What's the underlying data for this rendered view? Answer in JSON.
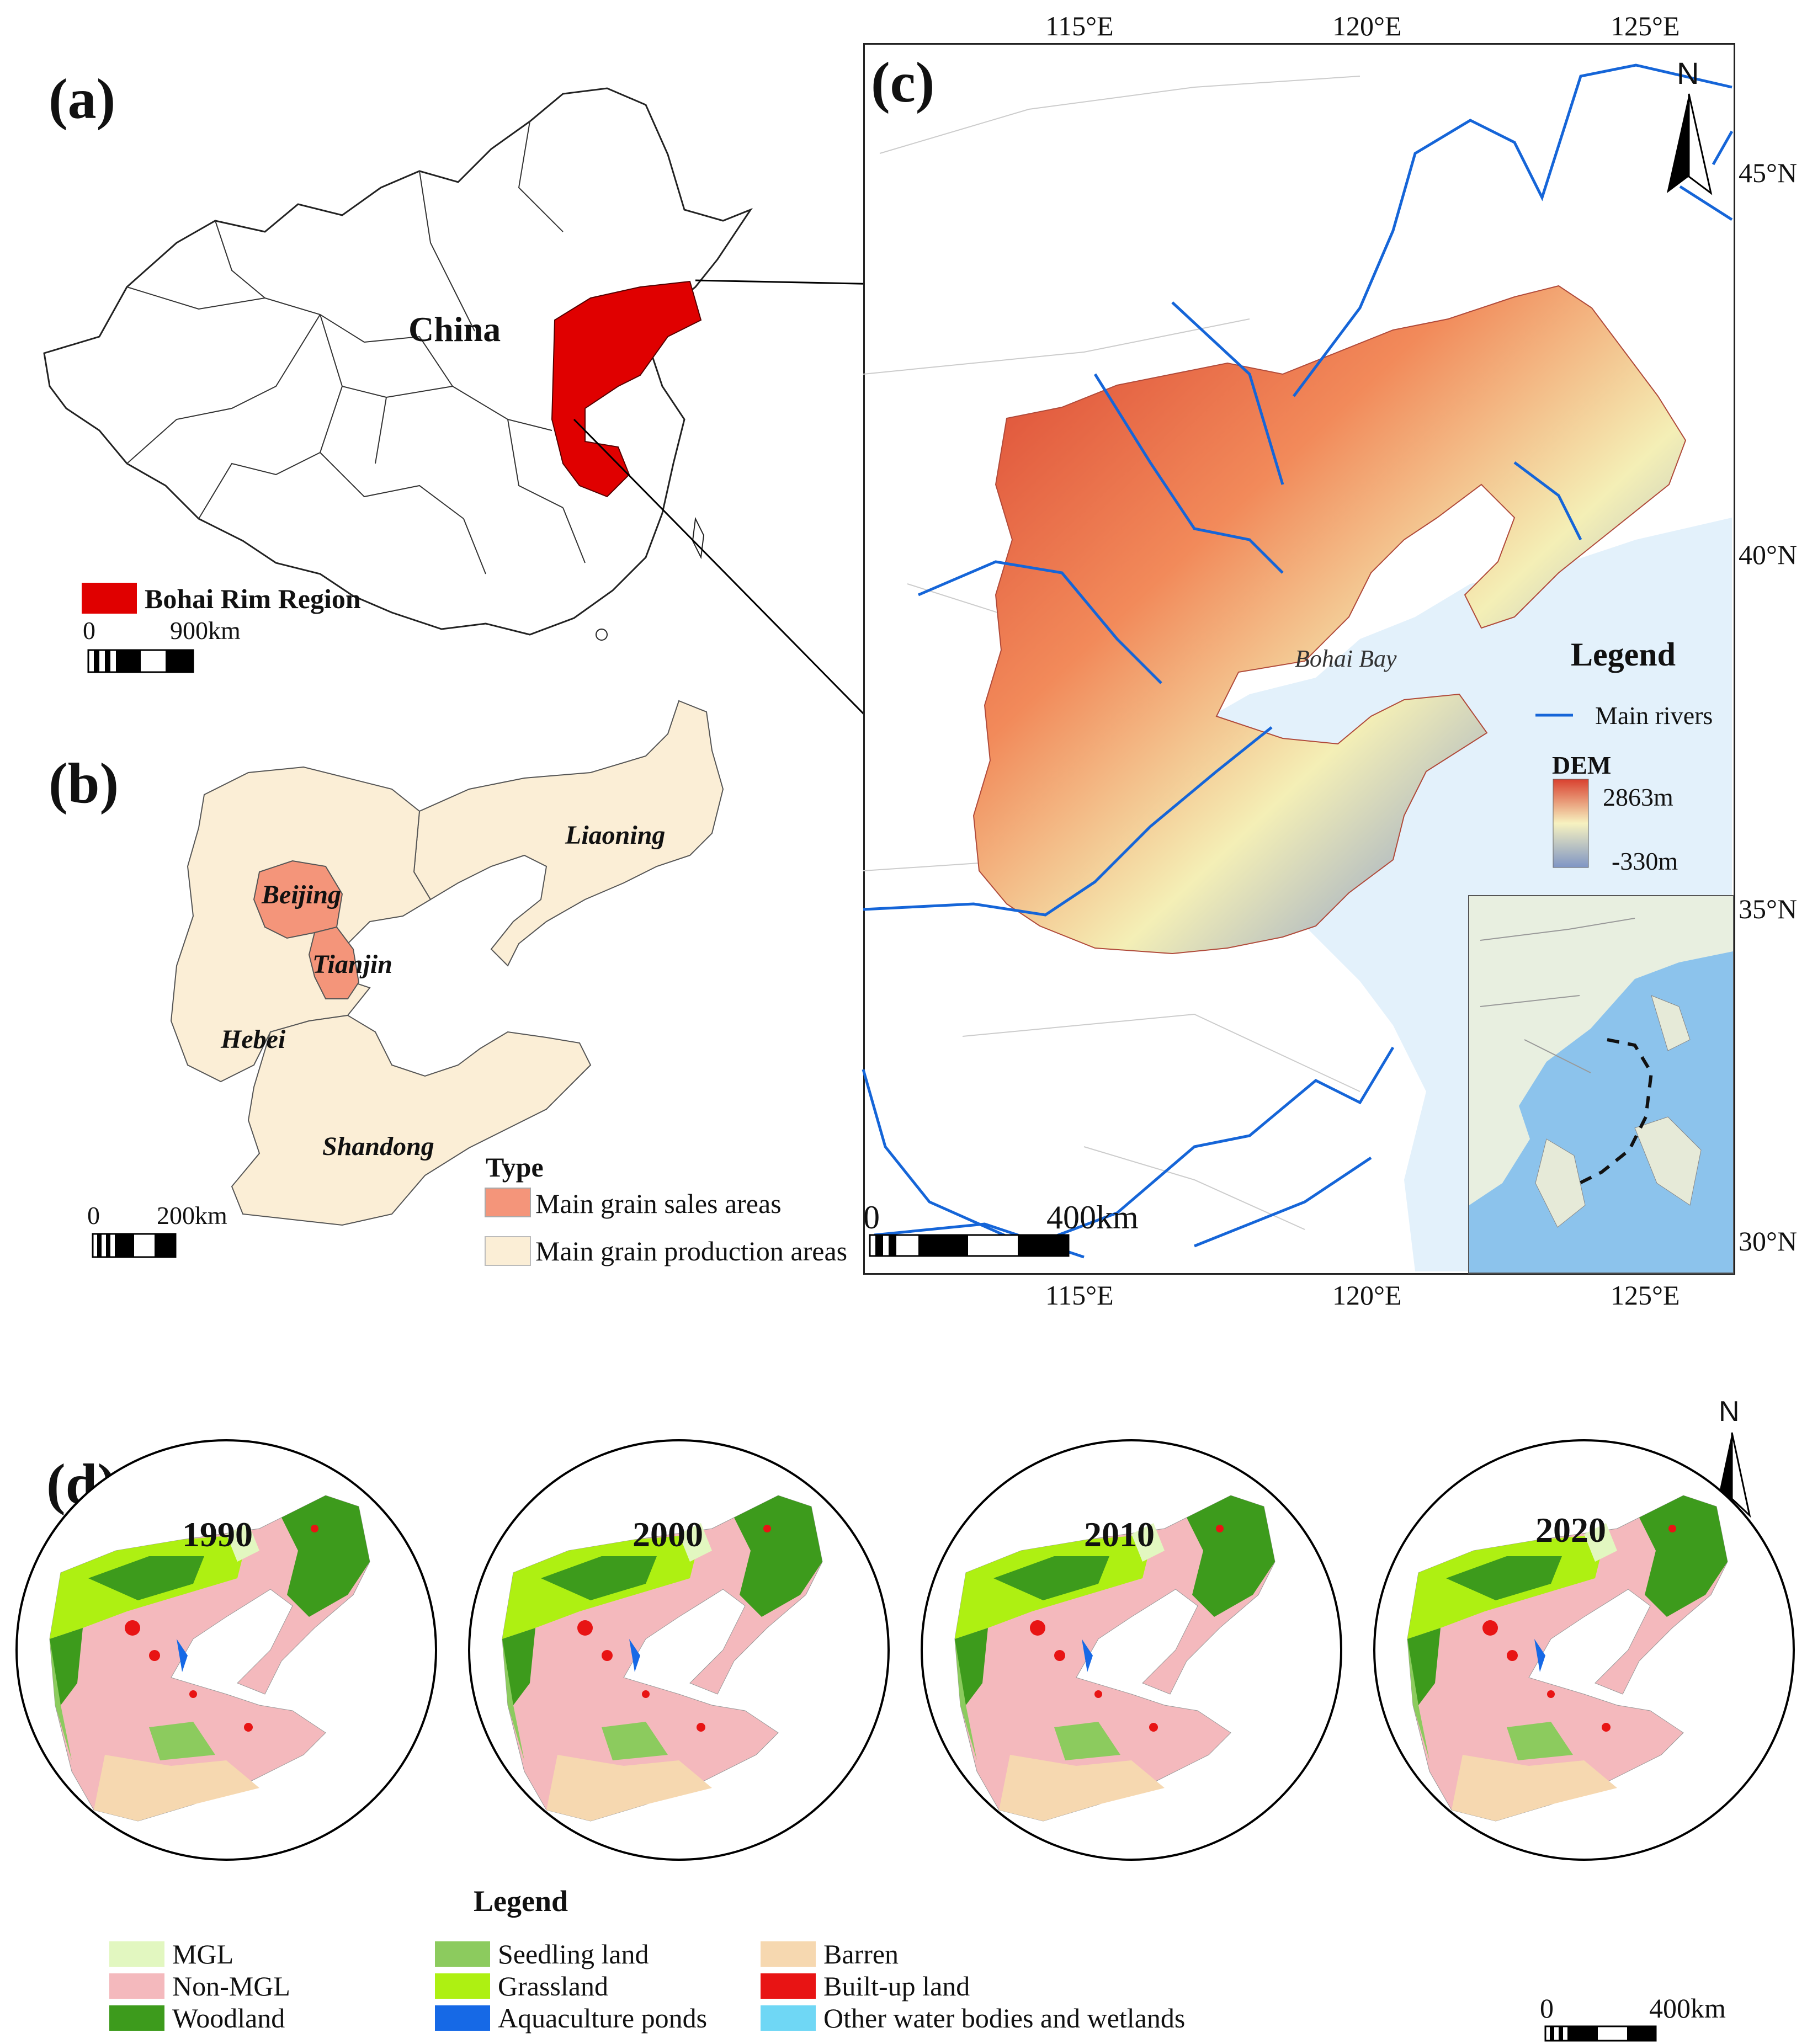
{
  "panels": {
    "a": {
      "letter": "(a)",
      "country_label": "China",
      "legend_label": "Bohai Rim Region",
      "scale_zero": "0",
      "scale_max": "900km"
    },
    "b": {
      "letter": "(b)",
      "provinces": [
        "Liaoning",
        "Beijing",
        "Tianjin",
        "Hebei",
        "Shandong"
      ],
      "scale_zero": "0",
      "scale_max": "200km",
      "type_title": "Type",
      "types": [
        "Main grain sales areas",
        "Main grain production areas"
      ]
    },
    "c": {
      "letter": "(c)",
      "top_lon": [
        "115°E",
        "120°E",
        "125°E"
      ],
      "bottom_lon": [
        "115°E",
        "120°E",
        "125°E"
      ],
      "lat": [
        "45°N",
        "40°N",
        "35°N",
        "30°N"
      ],
      "north": "N",
      "bay_label": "Bohai Bay",
      "legend_title": "Legend",
      "rivers_label": "Main rivers",
      "dem_title": "DEM",
      "dem_max": "2863m",
      "dem_min": "-330m",
      "scale_zero": "0",
      "scale_max": "400km"
    },
    "d": {
      "letter": "(d)",
      "years": [
        "1990",
        "2000",
        "2010",
        "2020"
      ],
      "north": "N",
      "legend_title": "Legend",
      "scale_zero": "0",
      "scale_max": "400km",
      "legend_items": [
        "MGL",
        "Non-MGL",
        "Woodland",
        "Seedling land",
        "Grassland",
        "Aquaculture ponds",
        "Barren",
        "Built-up land",
        "Other water bodies and wetlands"
      ]
    }
  },
  "colors": {
    "bohai_rim_red": "#e00000",
    "sales_area": "#f4957a",
    "production_area": "#fbeed6",
    "river_blue": "#1565d8",
    "sea": "#e3f1fb",
    "mgl": "#e2f7c0",
    "non_mgl": "#f4b9bd",
    "woodland": "#3d9b1c",
    "seedling": "#8ccb5e",
    "grassland": "#aef012",
    "aquaculture": "#1669e6",
    "barren": "#f6d8b0",
    "builtup": "#e81414",
    "other_water": "#6fd7f5"
  }
}
